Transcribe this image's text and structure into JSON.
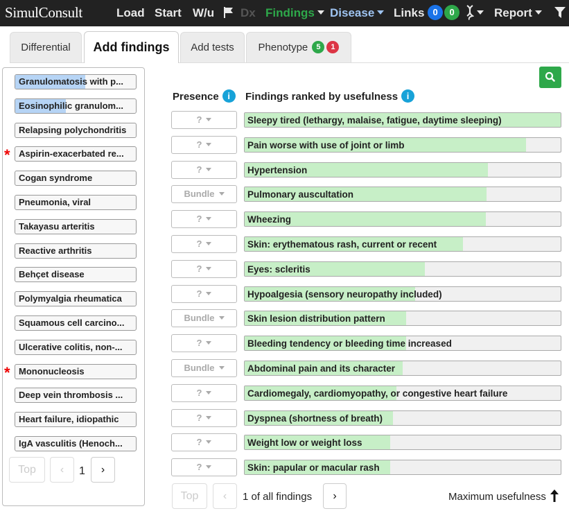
{
  "navbar": {
    "brand": "SimulConsult",
    "load": "Load",
    "start": "Start",
    "wu": "W/u",
    "dx": "Dx",
    "findings": "Findings",
    "disease": "Disease",
    "links": "Links",
    "links_count_a": "0",
    "links_count_b": "0",
    "report": "Report",
    "colors": {
      "links_a": "#1a73e8",
      "links_b": "#2ea84a",
      "findings": "#e8e8e8",
      "disease": "#9ec3f0"
    }
  },
  "tabs": {
    "differential": "Differential",
    "add_findings": "Add findings",
    "add_tests": "Add tests",
    "phenotype": "Phenotype",
    "phenotype_badge_green": "5",
    "phenotype_badge_red": "1"
  },
  "differential": {
    "items": [
      {
        "label": "Granulomatosis with p...",
        "starred": false,
        "highlight": 0.58
      },
      {
        "label": "Eosinophilic granulom...",
        "starred": false,
        "highlight": 0.42
      },
      {
        "label": "Relapsing polychondritis",
        "starred": false,
        "highlight": 0
      },
      {
        "label": "Aspirin-exacerbated re...",
        "starred": true,
        "highlight": 0
      },
      {
        "label": "Cogan syndrome",
        "starred": false,
        "highlight": 0
      },
      {
        "label": "Pneumonia, viral",
        "starred": false,
        "highlight": 0
      },
      {
        "label": "Takayasu arteritis",
        "starred": false,
        "highlight": 0
      },
      {
        "label": "Reactive arthritis",
        "starred": false,
        "highlight": 0
      },
      {
        "label": "Behçet disease",
        "starred": false,
        "highlight": 0
      },
      {
        "label": "Polymyalgia rheumatica",
        "starred": false,
        "highlight": 0
      },
      {
        "label": "Squamous cell carcino...",
        "starred": false,
        "highlight": 0
      },
      {
        "label": "Ulcerative colitis, non-...",
        "starred": false,
        "highlight": 0
      },
      {
        "label": "Mononucleosis",
        "starred": true,
        "highlight": 0
      },
      {
        "label": "Deep vein thrombosis ...",
        "starred": false,
        "highlight": 0
      },
      {
        "label": "Heart failure, idiopathic",
        "starred": false,
        "highlight": 0
      },
      {
        "label": "IgA vasculitis (Henoch...",
        "starred": false,
        "highlight": 0
      }
    ],
    "pager": {
      "top": "Top",
      "prev": "‹",
      "page": "1",
      "next": "›"
    }
  },
  "findings_panel": {
    "presence_header": "Presence",
    "findings_header": "Findings ranked by usefulness",
    "info_glyph": "i",
    "rows": [
      {
        "presence": "?",
        "label": "Sleepy tired (lethargy, malaise, fatigue, daytime sleeping)",
        "usefulness": 1.0
      },
      {
        "presence": "?",
        "label": "Pain worse with use of joint or limb",
        "usefulness": 0.89
      },
      {
        "presence": "?",
        "label": "Hypertension",
        "usefulness": 0.77
      },
      {
        "presence": "Bundle",
        "label": "Pulmonary auscultation",
        "usefulness": 0.765
      },
      {
        "presence": "?",
        "label": "Wheezing",
        "usefulness": 0.763
      },
      {
        "presence": "?",
        "label": "Skin: erythematous rash, current or recent",
        "usefulness": 0.69
      },
      {
        "presence": "?",
        "label": "Eyes: scleritis",
        "usefulness": 0.57
      },
      {
        "presence": "?",
        "label": "Hypoalgesia (sensory neuropathy included)",
        "usefulness": 0.54
      },
      {
        "presence": "Bundle",
        "label": "Skin lesion distribution pattern",
        "usefulness": 0.51
      },
      {
        "presence": "?",
        "label": "Bleeding tendency or bleeding time increased",
        "usefulness": 0.51
      },
      {
        "presence": "Bundle",
        "label": "Abdominal pain and its character",
        "usefulness": 0.5
      },
      {
        "presence": "?",
        "label": "Cardiomegaly, cardiomyopathy, or congestive heart failure",
        "usefulness": 0.48
      },
      {
        "presence": "?",
        "label": "Dyspnea (shortness of breath)",
        "usefulness": 0.47
      },
      {
        "presence": "?",
        "label": "Weight low or weight loss",
        "usefulness": 0.46
      },
      {
        "presence": "?",
        "label": "Skin: papular or macular rash",
        "usefulness": 0.46
      }
    ],
    "pager": {
      "top": "Top",
      "prev": "‹",
      "status": "1 of all findings",
      "next": "›"
    },
    "sort_label": "Maximum usefulness"
  }
}
